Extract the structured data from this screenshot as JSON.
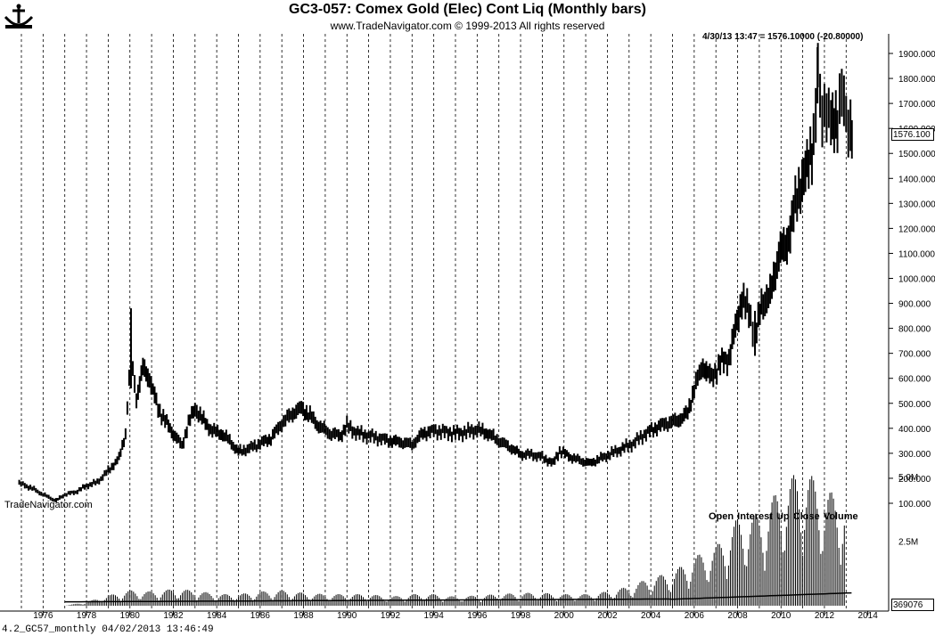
{
  "header": {
    "title": "GC3-057:  Comex Gold (Elec) Cont Liq  (Monthly bars)",
    "subtitle": "www.TradeNavigator.com © 1999-2013 All rights reserved"
  },
  "quote_line": "4/30/13 13:47 = 1576.10000 (-20.80000)",
  "last_price_label": "1576.100",
  "open_interest_label": "369076",
  "watermark": "TradeNavigator.com",
  "volume_legend": "Open Interest   Up Close   Volume",
  "footer": "4.2_GC57_monthly   04/02/2013 13:46:49",
  "colors": {
    "background": "#ffffff",
    "bars": "#000000",
    "grid": "#000000"
  },
  "chart_data": [
    {
      "type": "bar",
      "title": "GC3-057:  Comex Gold (Elec) Cont Liq  (Monthly bars)",
      "xlabel": "",
      "ylabel": "",
      "xlim": [
        1974,
        2014
      ],
      "ylim": [
        100,
        1900
      ],
      "grid": "vertical dashed lines at each year",
      "x_ticks": [
        "1976",
        "1978",
        "1980",
        "1982",
        "1984",
        "1986",
        "1988",
        "1990",
        "1992",
        "1994",
        "1996",
        "1998",
        "2000",
        "2002",
        "2004",
        "2006",
        "2008",
        "2010",
        "2012",
        "2014"
      ],
      "y_ticks": [
        "1900.000",
        "1800.000",
        "1700.000",
        "1600.000",
        "1500.000",
        "1400.000",
        "1300.000",
        "1200.000",
        "1100.000",
        "1000.000",
        "900.000",
        "800.000",
        "700.000",
        "600.000",
        "500.000",
        "400.000",
        "300.000",
        "200.000",
        "100.000"
      ],
      "series": [
        {
          "values_year_price": [
            [
              1974.9,
              180
            ],
            [
              1975.5,
              160
            ],
            [
              1976.0,
              135
            ],
            [
              1976.6,
              110
            ],
            [
              1977.0,
              135
            ],
            [
              1977.5,
              145
            ],
            [
              1978.0,
              170
            ],
            [
              1978.5,
              185
            ],
            [
              1979.0,
              230
            ],
            [
              1979.5,
              280
            ],
            [
              1979.8,
              380
            ],
            [
              1980.05,
              700
            ],
            [
              1980.3,
              520
            ],
            [
              1980.6,
              640
            ],
            [
              1980.9,
              600
            ],
            [
              1981.3,
              480
            ],
            [
              1981.7,
              420
            ],
            [
              1982.0,
              380
            ],
            [
              1982.4,
              330
            ],
            [
              1982.7,
              420
            ],
            [
              1983.0,
              480
            ],
            [
              1983.4,
              430
            ],
            [
              1983.8,
              390
            ],
            [
              1984.2,
              380
            ],
            [
              1984.6,
              350
            ],
            [
              1985.0,
              305
            ],
            [
              1985.5,
              320
            ],
            [
              1986.0,
              340
            ],
            [
              1986.5,
              360
            ],
            [
              1987.0,
              420
            ],
            [
              1987.5,
              460
            ],
            [
              1987.9,
              480
            ],
            [
              1988.3,
              450
            ],
            [
              1988.7,
              410
            ],
            [
              1989.2,
              380
            ],
            [
              1989.7,
              370
            ],
            [
              1990.0,
              410
            ],
            [
              1990.5,
              380
            ],
            [
              1991.0,
              370
            ],
            [
              1991.5,
              360
            ],
            [
              1992.0,
              350
            ],
            [
              1992.5,
              345
            ],
            [
              1993.0,
              335
            ],
            [
              1993.5,
              380
            ],
            [
              1994.0,
              390
            ],
            [
              1994.5,
              385
            ],
            [
              1995.0,
              380
            ],
            [
              1995.5,
              385
            ],
            [
              1996.0,
              395
            ],
            [
              1996.5,
              380
            ],
            [
              1997.0,
              350
            ],
            [
              1997.5,
              325
            ],
            [
              1998.0,
              295
            ],
            [
              1998.5,
              295
            ],
            [
              1999.0,
              285
            ],
            [
              1999.5,
              260
            ],
            [
              1999.8,
              310
            ],
            [
              2000.3,
              285
            ],
            [
              2000.8,
              270
            ],
            [
              2001.2,
              260
            ],
            [
              2001.7,
              280
            ],
            [
              2002.2,
              300
            ],
            [
              2002.7,
              320
            ],
            [
              2003.2,
              340
            ],
            [
              2003.7,
              375
            ],
            [
              2004.2,
              400
            ],
            [
              2004.7,
              420
            ],
            [
              2005.2,
              430
            ],
            [
              2005.7,
              460
            ],
            [
              2006.0,
              560
            ],
            [
              2006.4,
              650
            ],
            [
              2006.8,
              600
            ],
            [
              2007.2,
              660
            ],
            [
              2007.6,
              680
            ],
            [
              2007.9,
              800
            ],
            [
              2008.2,
              920
            ],
            [
              2008.6,
              850
            ],
            [
              2008.8,
              750
            ],
            [
              2009.1,
              900
            ],
            [
              2009.5,
              930
            ],
            [
              2009.9,
              1100
            ],
            [
              2010.2,
              1120
            ],
            [
              2010.5,
              1230
            ],
            [
              2010.9,
              1380
            ],
            [
              2011.2,
              1430
            ],
            [
              2011.5,
              1560
            ],
            [
              2011.7,
              1800
            ],
            [
              2011.9,
              1650
            ],
            [
              2012.1,
              1700
            ],
            [
              2012.3,
              1600
            ],
            [
              2012.6,
              1660
            ],
            [
              2012.8,
              1720
            ],
            [
              2013.0,
              1660
            ],
            [
              2013.2,
              1600
            ],
            [
              2013.33,
              1576
            ]
          ]
        }
      ]
    },
    {
      "type": "bar",
      "title": "",
      "xlabel": "",
      "ylabel": "",
      "ylim": [
        0,
        5.8
      ],
      "y_ticks": [
        "5.0M",
        "2.5M"
      ],
      "legend": "top-right",
      "series": [
        {
          "name": "Open Interest"
        },
        {
          "name": "Up Close"
        },
        {
          "name": "Volume"
        }
      ],
      "volume_millions_by_year": [
        [
          1977,
          0.0
        ],
        [
          1978,
          0.15
        ],
        [
          1979,
          0.4
        ],
        [
          1980,
          0.6
        ],
        [
          1981,
          0.55
        ],
        [
          1982,
          0.65
        ],
        [
          1983,
          0.6
        ],
        [
          1984,
          0.45
        ],
        [
          1985,
          0.45
        ],
        [
          1986,
          0.55
        ],
        [
          1987,
          0.6
        ],
        [
          1988,
          0.5
        ],
        [
          1989,
          0.45
        ],
        [
          1990,
          0.45
        ],
        [
          1991,
          0.45
        ],
        [
          1992,
          0.35
        ],
        [
          1993,
          0.45
        ],
        [
          1994,
          0.45
        ],
        [
          1995,
          0.35
        ],
        [
          1996,
          0.4
        ],
        [
          1997,
          0.45
        ],
        [
          1998,
          0.5
        ],
        [
          1999,
          0.5
        ],
        [
          2000,
          0.45
        ],
        [
          2001,
          0.45
        ],
        [
          2002,
          0.55
        ],
        [
          2003,
          0.75
        ],
        [
          2004,
          1.1
        ],
        [
          2005,
          1.3
        ],
        [
          2006,
          1.9
        ],
        [
          2007,
          2.3
        ],
        [
          2008,
          3.4
        ],
        [
          2009,
          3.6
        ],
        [
          2010,
          4.6
        ],
        [
          2011,
          5.4
        ],
        [
          2012,
          4.5
        ],
        [
          2013,
          4.2
        ]
      ]
    }
  ]
}
